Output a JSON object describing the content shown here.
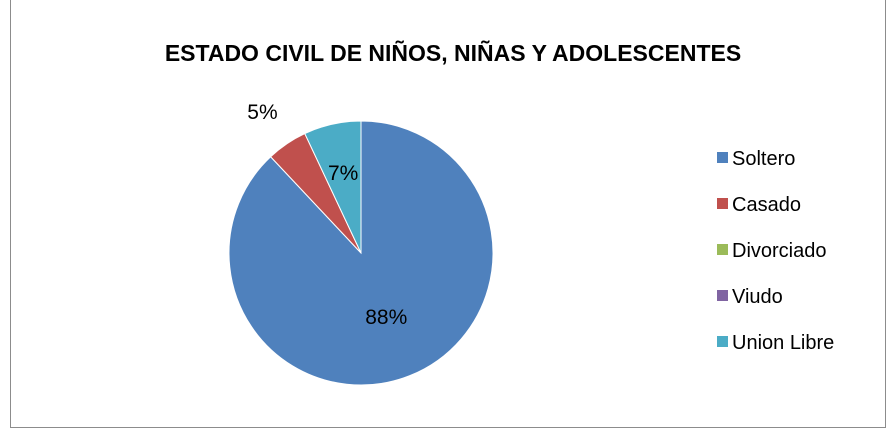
{
  "chart_data": {
    "type": "pie",
    "title": "ESTADO CIVIL DE NIÑOS, NIÑAS Y ADOLESCENTES",
    "categories": [
      "Soltero",
      "Casado",
      "Divorciado",
      "Viudo",
      "Union Libre"
    ],
    "values": [
      88,
      5,
      0,
      0,
      7
    ],
    "value_labels": [
      "88%",
      "5%",
      "",
      "",
      "7%"
    ],
    "colors": [
      "#4f81bd",
      "#c0504d",
      "#9bbb59",
      "#8064a2",
      "#4bacc6"
    ],
    "legend_position": "right"
  }
}
